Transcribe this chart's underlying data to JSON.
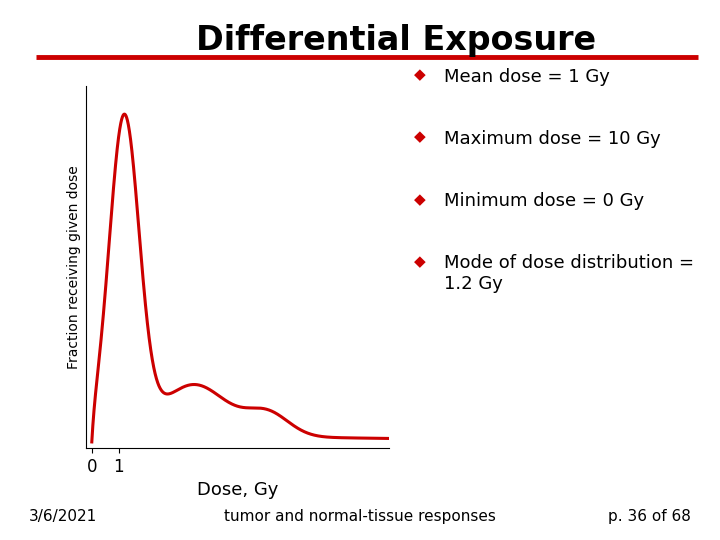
{
  "title": "Differential Exposure",
  "title_fontsize": 24,
  "title_fontweight": "bold",
  "red_line_color": "#cc0000",
  "curve_color": "#cc0000",
  "ylabel": "Fraction receiving given dose",
  "xlabel": "Dose, Gy",
  "xticks": [
    0,
    1
  ],
  "background_color": "#ffffff",
  "legend_items": [
    "Mean dose = 1 Gy",
    "Maximum dose = 10 Gy",
    "Minimum dose = 0 Gy",
    "Mode of dose distribution =\n1.2 Gy"
  ],
  "legend_marker_color": "#cc0000",
  "footer_left": "3/6/2021",
  "footer_center": "tumor and normal-tissue responses",
  "footer_right": "p. 36 of 68",
  "footer_fontsize": 11
}
